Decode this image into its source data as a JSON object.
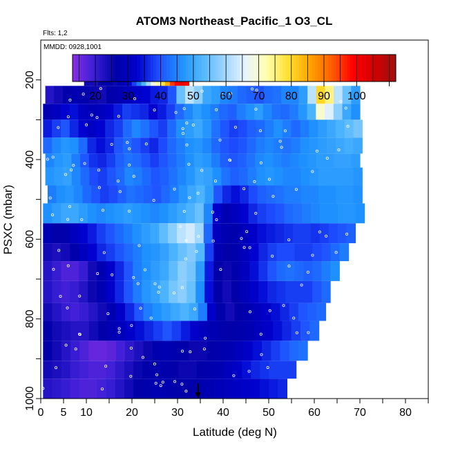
{
  "chart_data": {
    "type": "heatmap",
    "title": "ATOM3 Northeast_Pacific_1 O3_CL",
    "annotations": [
      "Flts: 1,2",
      "MMDD: 0928,1001"
    ],
    "xlabel": "Latitude (deg N)",
    "ylabel": "PSXC (mbar)",
    "xlim": [
      0,
      85
    ],
    "ylim": [
      1000,
      100
    ],
    "x_ticks": [
      0,
      5,
      10,
      20,
      30,
      40,
      50,
      60,
      70,
      80
    ],
    "x_minor_ticks": [
      15,
      25,
      35,
      45,
      55,
      65,
      75,
      85
    ],
    "y_ticks": [
      200,
      400,
      600,
      800,
      1000
    ],
    "colorbar": {
      "range": [
        13,
        112
      ],
      "labels": [
        20,
        30,
        40,
        50,
        60,
        70,
        80,
        90,
        100
      ],
      "colors": [
        "#8A2BE2",
        "#3A1FD6",
        "#0000A8",
        "#0000CD",
        "#1E4FFF",
        "#1E90FF",
        "#4FB6FF",
        "#9AD4FF",
        "#E8F4FF",
        "#FFFFB0",
        "#FFE030",
        "#FFA500",
        "#FF6000",
        "#FF0000",
        "#D00000",
        "#A01010"
      ]
    },
    "bands": [
      {
        "p_top": 175,
        "p_bot": 215,
        "x0": 9.5,
        "x1": 32.5,
        "values": [
          25,
          24,
          23,
          26,
          27,
          26,
          25,
          28,
          30,
          33,
          38,
          44,
          52,
          60,
          68,
          72,
          78,
          85,
          95,
          100,
          102,
          100
        ]
      },
      {
        "p_top": 215,
        "p_bot": 260,
        "x0": 1.0,
        "x1": 70.0,
        "values": [
          22,
          24,
          26,
          28,
          27,
          25,
          24,
          26,
          28,
          30,
          32,
          33,
          35,
          36,
          40,
          55,
          62,
          58,
          50,
          48,
          45,
          44,
          42,
          41,
          40,
          42,
          43,
          45,
          45,
          48,
          62,
          80,
          75,
          62,
          55,
          48
        ]
      },
      {
        "p_top": 260,
        "p_bot": 300,
        "x0": 0.5,
        "x1": 70.0,
        "values": [
          28,
          30,
          33,
          34,
          31,
          29,
          30,
          32,
          35,
          38,
          37,
          36,
          33,
          35,
          38,
          42,
          45,
          48,
          46,
          44,
          42,
          41,
          44,
          46,
          48,
          45,
          43,
          42,
          44,
          47,
          52,
          70,
          65,
          58,
          50,
          46
        ]
      },
      {
        "p_top": 300,
        "p_bot": 345,
        "x0": 0.5,
        "x1": 70.5,
        "values": [
          35,
          38,
          40,
          36,
          33,
          31,
          33,
          36,
          38,
          42,
          45,
          43,
          40,
          38,
          42,
          46,
          48,
          50,
          47,
          43,
          40,
          38,
          39,
          41,
          42,
          44,
          46,
          44,
          42,
          44,
          46,
          48,
          50,
          52,
          54,
          56
        ]
      },
      {
        "p_top": 345,
        "p_bot": 385,
        "x0": 0.5,
        "x1": 70.5,
        "values": [
          42,
          45,
          47,
          46,
          42,
          36,
          34,
          36,
          40,
          42,
          40,
          38,
          36,
          39,
          42,
          44,
          46,
          47,
          45,
          42,
          40,
          39,
          40,
          42,
          44,
          45,
          44,
          43,
          44,
          46,
          47,
          48,
          49,
          50,
          51,
          50
        ]
      },
      {
        "p_top": 385,
        "p_bot": 420,
        "x0": 1.0,
        "x1": 70.0,
        "values": [
          45,
          47,
          48,
          44,
          40,
          37,
          36,
          38,
          41,
          43,
          42,
          40,
          38,
          40,
          42,
          44,
          46,
          48,
          47,
          44,
          41,
          40,
          41,
          43,
          45,
          46,
          45,
          44,
          45,
          46,
          47,
          48,
          48,
          49,
          49,
          48
        ]
      },
      {
        "p_top": 420,
        "p_bot": 465,
        "x0": 1.0,
        "x1": 70.5,
        "values": [
          47,
          48,
          49,
          45,
          42,
          39,
          38,
          40,
          42,
          45,
          44,
          42,
          40,
          41,
          43,
          45,
          47,
          50,
          49,
          46,
          43,
          41,
          42,
          44,
          46,
          47,
          46,
          45,
          45,
          46,
          47,
          48,
          48,
          48,
          48,
          47
        ]
      },
      {
        "p_top": 465,
        "p_bot": 510,
        "x0": 1.5,
        "x1": 70.5,
        "values": [
          44,
          46,
          47,
          45,
          42,
          40,
          38,
          39,
          41,
          43,
          42,
          41,
          40,
          42,
          44,
          47,
          50,
          52,
          48,
          40,
          36,
          34,
          36,
          39,
          41,
          42,
          43,
          44,
          44,
          45,
          45,
          46,
          46,
          47,
          47,
          46
        ]
      },
      {
        "p_top": 510,
        "p_bot": 560,
        "x0": 0.5,
        "x1": 71.0,
        "values": [
          46,
          48,
          50,
          50,
          48,
          46,
          45,
          46,
          47,
          48,
          47,
          46,
          45,
          46,
          48,
          50,
          52,
          55,
          45,
          32,
          28,
          30,
          33,
          36,
          38,
          39,
          40,
          42,
          43,
          44,
          45,
          46,
          46,
          47,
          47,
          46
        ]
      },
      {
        "p_top": 560,
        "p_bot": 610,
        "x0": 0.5,
        "x1": 69.0,
        "values": [
          28,
          26,
          27,
          30,
          33,
          35,
          38,
          40,
          42,
          44,
          46,
          48,
          50,
          54,
          58,
          62,
          64,
          60,
          42,
          30,
          28,
          27,
          29,
          32,
          34,
          35,
          36,
          37,
          38,
          38,
          37,
          38,
          39,
          40,
          41
        ]
      },
      {
        "p_top": 610,
        "p_bot": 655,
        "x0": 0.5,
        "x1": 67.5,
        "values": [
          24,
          23,
          24,
          27,
          30,
          33,
          36,
          38,
          40,
          42,
          44,
          46,
          47,
          49,
          52,
          55,
          57,
          53,
          38,
          28,
          26,
          27,
          30,
          33,
          36,
          38,
          39,
          39,
          38,
          38,
          39,
          40,
          42,
          44
        ]
      },
      {
        "p_top": 655,
        "p_bot": 705,
        "x0": 0.5,
        "x1": 65.5,
        "values": [
          22,
          20,
          18,
          18,
          20,
          24,
          28,
          32,
          36,
          40,
          44,
          46,
          48,
          50,
          54,
          58,
          56,
          48,
          35,
          26,
          25,
          27,
          30,
          34,
          37,
          40,
          42,
          43,
          42,
          41,
          42,
          44,
          46
        ]
      },
      {
        "p_top": 705,
        "p_bot": 760,
        "x0": 0.5,
        "x1": 63.5,
        "values": [
          22,
          20,
          19,
          20,
          22,
          25,
          28,
          32,
          36,
          40,
          44,
          47,
          49,
          52,
          56,
          58,
          55,
          46,
          34,
          26,
          24,
          26,
          29,
          32,
          34,
          36,
          37,
          38,
          38,
          38,
          40,
          42
        ]
      },
      {
        "p_top": 760,
        "p_bot": 805,
        "x0": 0.5,
        "x1": 62.5,
        "values": [
          24,
          22,
          20,
          19,
          20,
          22,
          24,
          28,
          32,
          36,
          40,
          44,
          46,
          48,
          50,
          52,
          50,
          44,
          32,
          26,
          24,
          26,
          28,
          30,
          32,
          34,
          36,
          38,
          40,
          41,
          42
        ]
      },
      {
        "p_top": 805,
        "p_bot": 855,
        "x0": 0.5,
        "x1": 61.0,
        "values": [
          26,
          24,
          23,
          22,
          22,
          24,
          26,
          28,
          30,
          32,
          34,
          36,
          38,
          40,
          38,
          35,
          32,
          30,
          28,
          27,
          26,
          27,
          28,
          30,
          32,
          34,
          36,
          38,
          40,
          42
        ]
      },
      {
        "p_top": 855,
        "p_bot": 905,
        "x0": 0.5,
        "x1": 58.5,
        "values": [
          26,
          24,
          22,
          20,
          18,
          16,
          16,
          17,
          19,
          21,
          23,
          25,
          27,
          28,
          27,
          26,
          25,
          25,
          26,
          27,
          28,
          30,
          32,
          34,
          36,
          38,
          40,
          42,
          43
        ]
      },
      {
        "p_top": 905,
        "p_bot": 950,
        "x0": 0.5,
        "x1": 56.0,
        "values": [
          24,
          23,
          22,
          20,
          19,
          18,
          18,
          19,
          21,
          23,
          25,
          26,
          27,
          27,
          26,
          25,
          25,
          26,
          27,
          28,
          30,
          32,
          34,
          36,
          37,
          38,
          38,
          38
        ]
      },
      {
        "p_top": 950,
        "p_bot": 1000,
        "x0": 0.5,
        "x1": 54.0,
        "values": [
          22,
          21,
          20,
          19,
          18,
          18,
          19,
          20,
          22,
          24,
          26,
          27,
          28,
          28,
          27,
          26,
          26,
          27,
          28,
          29,
          30,
          31,
          32,
          33,
          34,
          35,
          36
        ]
      }
    ],
    "arrow_latitude": 34.5
  }
}
